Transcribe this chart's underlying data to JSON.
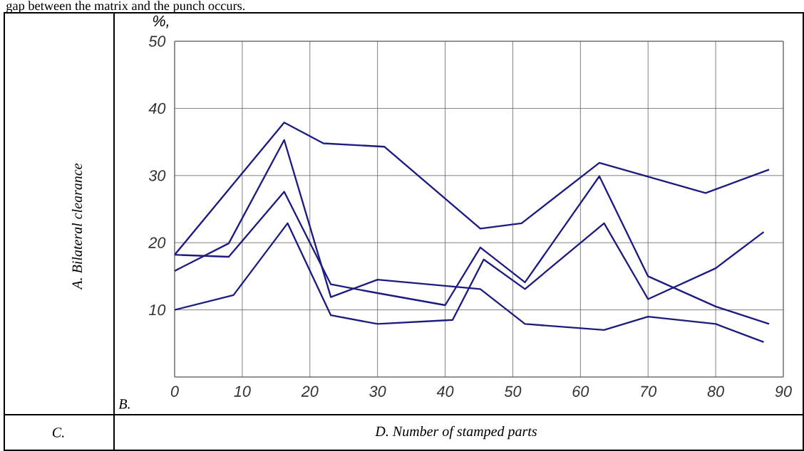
{
  "chart_data": {
    "type": "line",
    "title": null,
    "xlabel": "D.  Number of stamped parts",
    "ylabel": "A.      Bilateral clearance",
    "annotations": [
      "gap between the matrix and the punch occurs.",
      "%,",
      "B.",
      "C."
    ],
    "xlim": [
      0,
      90
    ],
    "ylim": [
      0,
      50
    ],
    "xticks": [
      0,
      10,
      20,
      30,
      40,
      50,
      60,
      70,
      80,
      90
    ],
    "yticks": [
      {
        "value": 0,
        "label": null
      },
      10,
      20,
      30,
      40,
      50
    ],
    "grid": true,
    "marker": "none",
    "line_style": "solid",
    "series": [
      {
        "color": "#1c1c80",
        "x": [
          0,
          16.2,
          22.0,
          31.0,
          45.2,
          51.3,
          62.8,
          78.5,
          87.9
        ],
        "values": [
          18.2,
          37.9,
          34.8,
          34.3,
          22.1,
          22.9,
          31.9,
          27.4,
          30.9
        ]
      },
      {
        "color": "#1c1c80",
        "x": [
          0,
          8.0,
          16.2,
          23.1,
          30.0,
          45.2,
          51.8,
          63.5,
          70,
          80,
          87.1
        ],
        "values": [
          15.8,
          19.9,
          35.3,
          11.9,
          14.5,
          13.1,
          7.9,
          7.0,
          9.0,
          7.9,
          5.2
        ]
      },
      {
        "color": "#1c1c80",
        "x": [
          0,
          8.0,
          16.2,
          23.1,
          30,
          40,
          45.2,
          51.8,
          62.8,
          70,
          80,
          87.9
        ],
        "values": [
          18.2,
          17.9,
          27.6,
          13.8,
          12.5,
          10.7,
          19.3,
          14.1,
          29.9,
          15.0,
          10.5,
          7.9
        ]
      },
      {
        "color": "#1c1c80",
        "x": [
          0,
          8.7,
          16.7,
          23.1,
          30,
          41.1,
          45.7,
          51.8,
          63.5,
          70,
          80,
          87.1
        ],
        "values": [
          10.0,
          12.2,
          22.9,
          9.2,
          7.9,
          8.5,
          17.5,
          13.1,
          22.9,
          11.6,
          16.2,
          21.6
        ]
      }
    ]
  }
}
